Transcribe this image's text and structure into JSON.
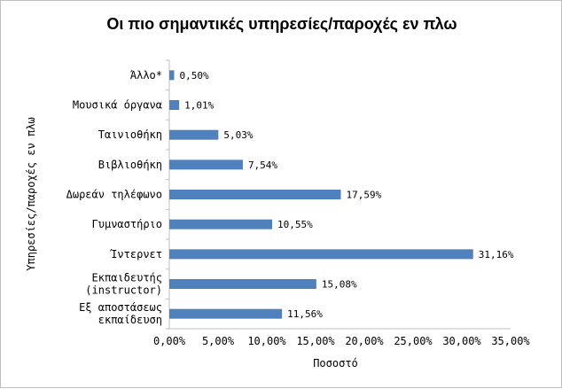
{
  "chart_data": {
    "type": "bar",
    "orientation": "horizontal",
    "title": "Οι πιο σημαντικές υπηρεσίες/παροχές εν πλω",
    "xlabel": "Ποσοστό",
    "ylabel": "Υπηρεσίες/παροχές εν πλω",
    "categories": [
      [
        "Άλλο*"
      ],
      [
        "Μουσικά όργανα"
      ],
      [
        "Ταινιοθήκη"
      ],
      [
        "Βιβλιοθήκη"
      ],
      [
        "Δωρεάν τηλέφωνο"
      ],
      [
        "Γυμναστήριο"
      ],
      [
        "Ίντερνετ"
      ],
      [
        "Εκπαιδευτής",
        "(instructor)"
      ],
      [
        "Εξ αποστάσεως",
        "εκπαίδευση"
      ]
    ],
    "values": [
      0.5,
      1.01,
      5.03,
      7.54,
      17.59,
      10.55,
      31.16,
      15.08,
      11.56
    ],
    "value_labels": [
      "0,50%",
      "1,01%",
      "5,03%",
      "7,54%",
      "17,59%",
      "10,55%",
      "31,16%",
      "15,08%",
      "11,56%"
    ],
    "xlim": [
      0,
      35
    ],
    "xticks": [
      0,
      5,
      10,
      15,
      20,
      25,
      30,
      35
    ],
    "xtick_labels": [
      "0,00%",
      "5,00%",
      "10,00%",
      "15,00%",
      "20,00%",
      "25,00%",
      "30,00%",
      "35,00%"
    ],
    "grid": false,
    "legend": "none",
    "colors": {
      "bar": "#4f81bd",
      "axis": "#bfbfbf",
      "text": "#000000"
    }
  }
}
